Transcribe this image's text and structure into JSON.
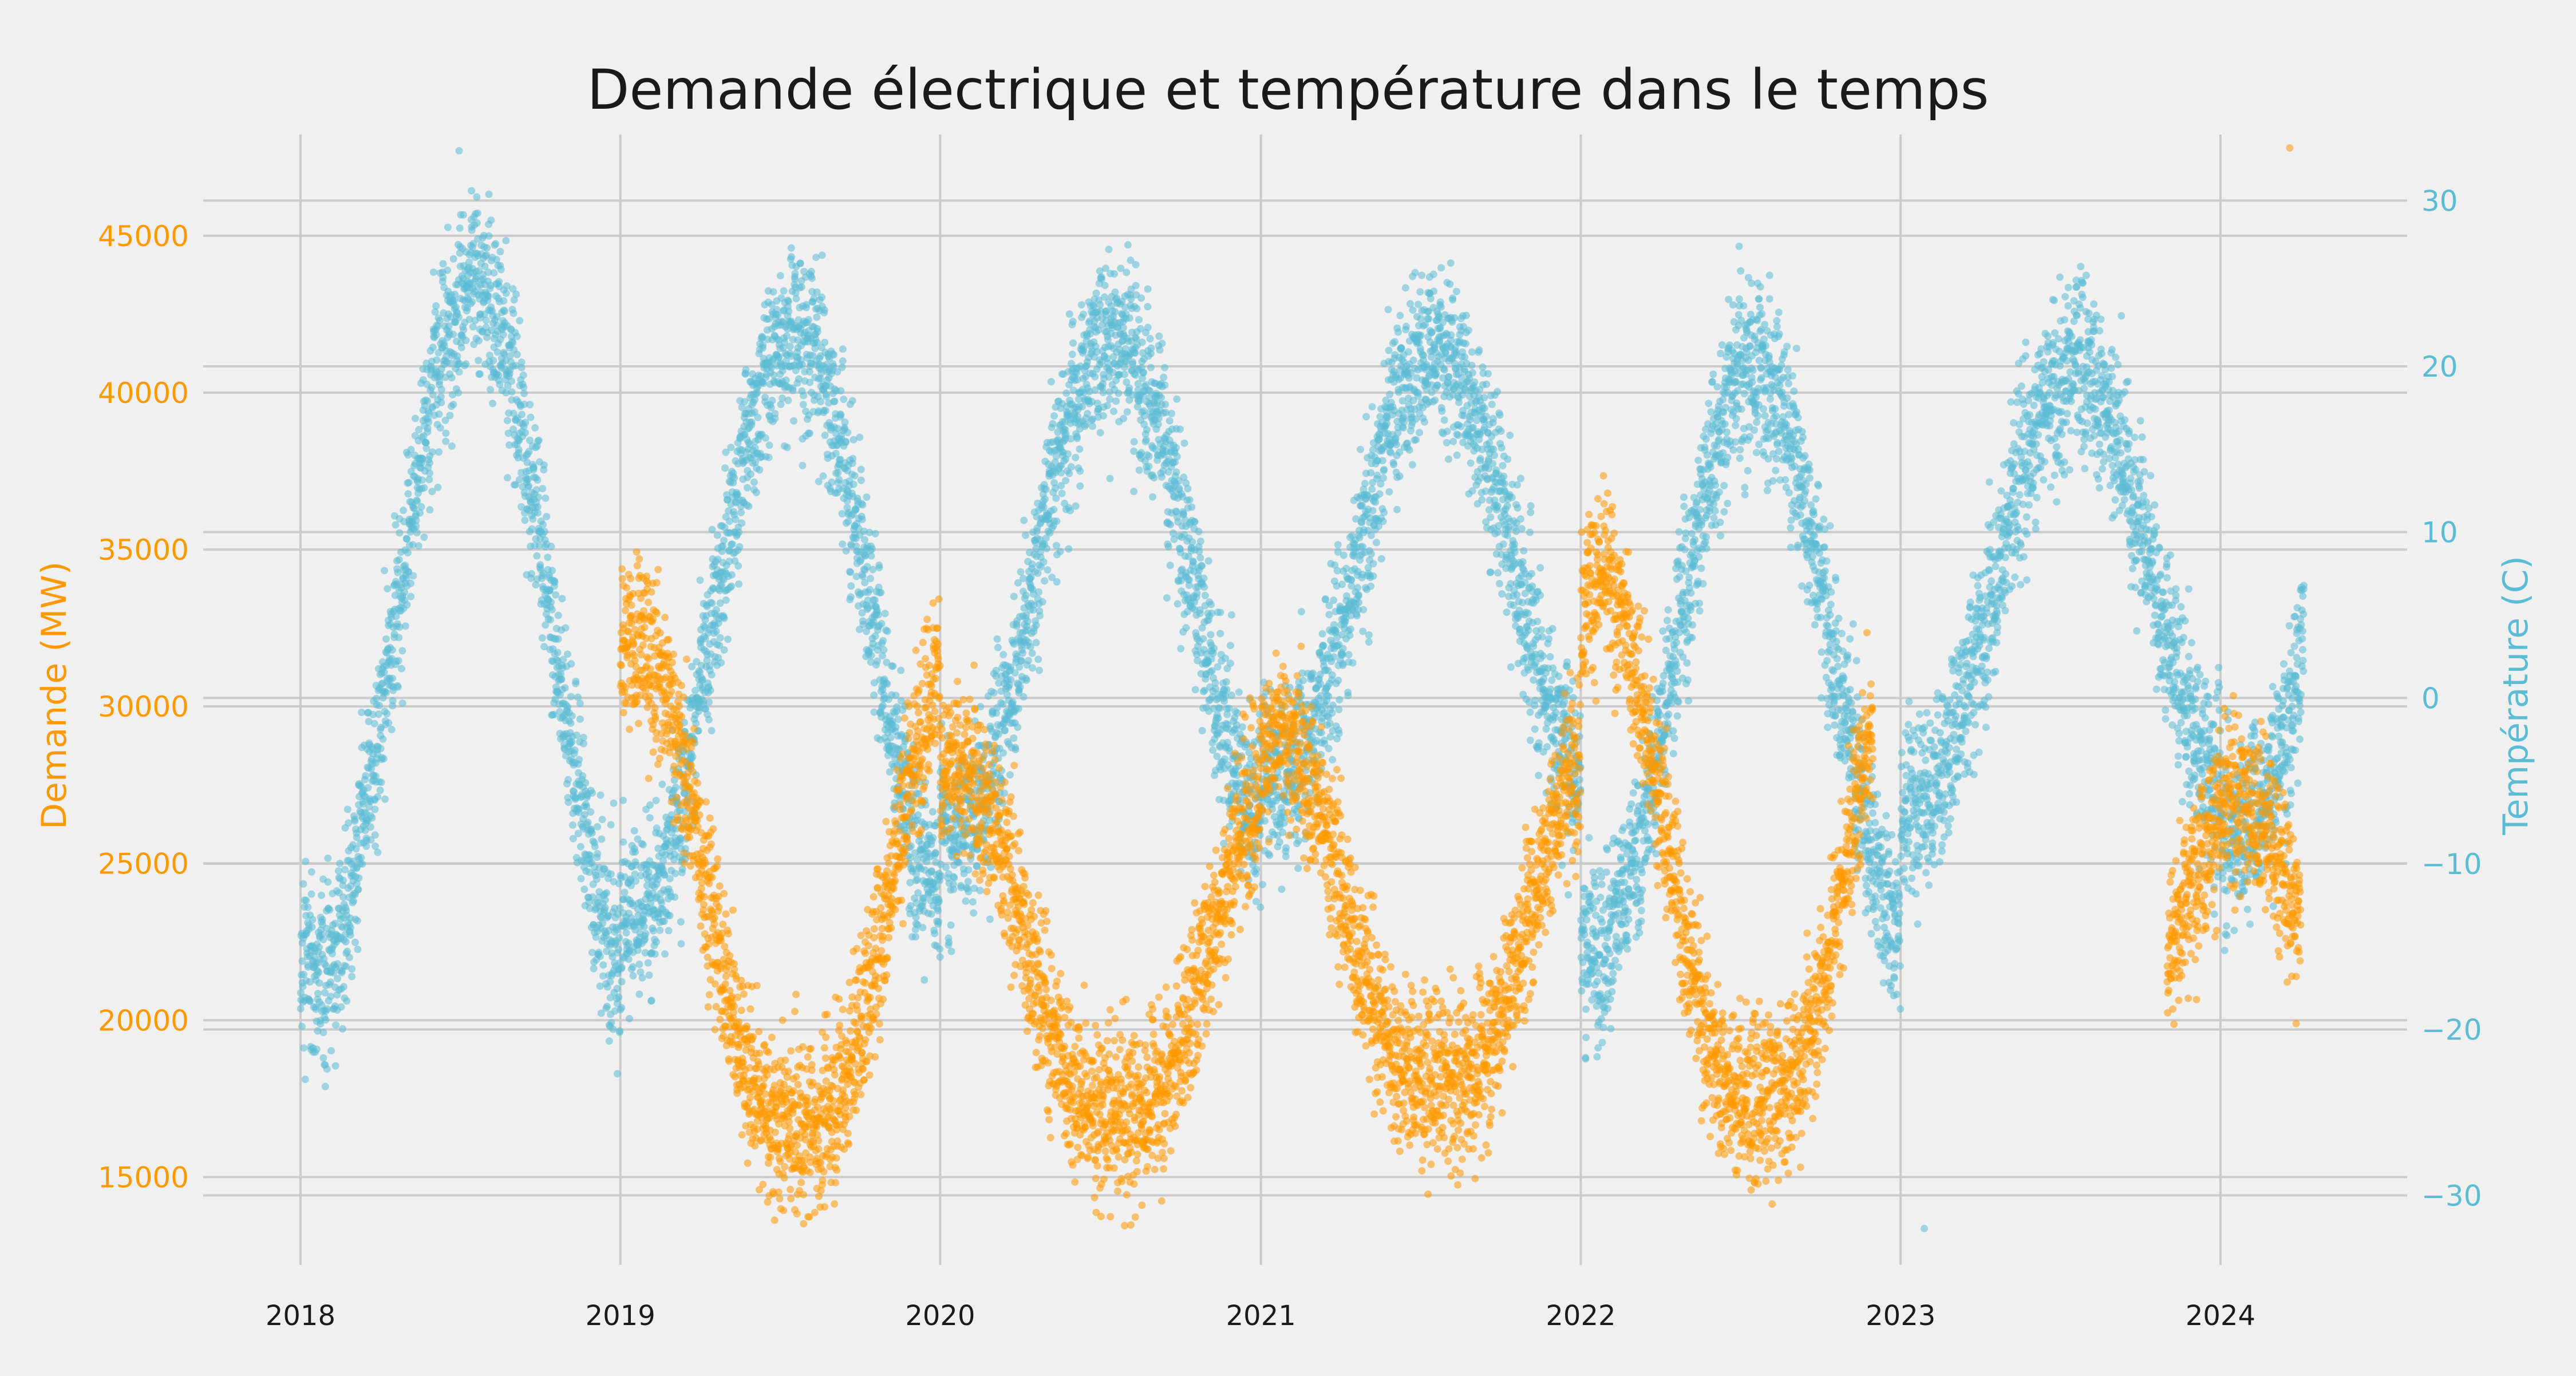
{
  "chart_data": {
    "type": "scatter",
    "title": "Demande électrique et température dans le temps",
    "x_axis": {
      "type": "date",
      "range": [
        "2017-09-12",
        "2024-08-01"
      ],
      "ticks": [
        "2018",
        "2019",
        "2020",
        "2021",
        "2022",
        "2023",
        "2024"
      ],
      "grid": true
    },
    "y_left": {
      "label": "Demande (MW)",
      "range": [
        12200,
        48500
      ],
      "ticks": [
        15000,
        20000,
        25000,
        30000,
        35000,
        40000,
        45000
      ],
      "color": "#ff9900",
      "grid": true
    },
    "y_right": {
      "label": "Température (C)",
      "range": [
        -34.2,
        34.5
      ],
      "ticks": [
        -30,
        -20,
        -10,
        0,
        10,
        20,
        30
      ],
      "color": "#5bbcd6",
      "grid": true
    },
    "series": [
      {
        "axis": "left",
        "color": "#ff9900",
        "marker": "dot",
        "data_spans": [
          {
            "start": "2019-01-01",
            "end": "2019-11-01"
          },
          {
            "start": "2019-11-01",
            "end": "2020-11-01"
          },
          {
            "start": "2020-11-01",
            "end": "2021-11-01"
          },
          {
            "start": "2021-11-01",
            "end": "2022-11-15"
          },
          {
            "start": "2022-11-15",
            "end": "2022-11-30"
          },
          {
            "start": "2023-11-01",
            "end": "2024-04-01"
          }
        ],
        "winter_peak_values": [
          32000,
          28000,
          29000,
          34000,
          25000,
          27000
        ],
        "summer_trough_values": [
          16500,
          17000,
          18000,
          17500
        ],
        "outlier": {
          "x": "2024-03-20",
          "y": 47800
        }
      },
      {
        "axis": "right",
        "color": "#5bbcd6",
        "marker": "dot",
        "data_span": {
          "start": "2018-01-01",
          "end": "2024-04-05"
        },
        "summer_peak_values": [
          25,
          22,
          22,
          21,
          20,
          20
        ],
        "winter_trough_values": [
          -17,
          -13,
          -8,
          -5,
          -15,
          -6,
          -8
        ],
        "extremes": {
          "max": 33,
          "min": -32
        }
      }
    ]
  }
}
